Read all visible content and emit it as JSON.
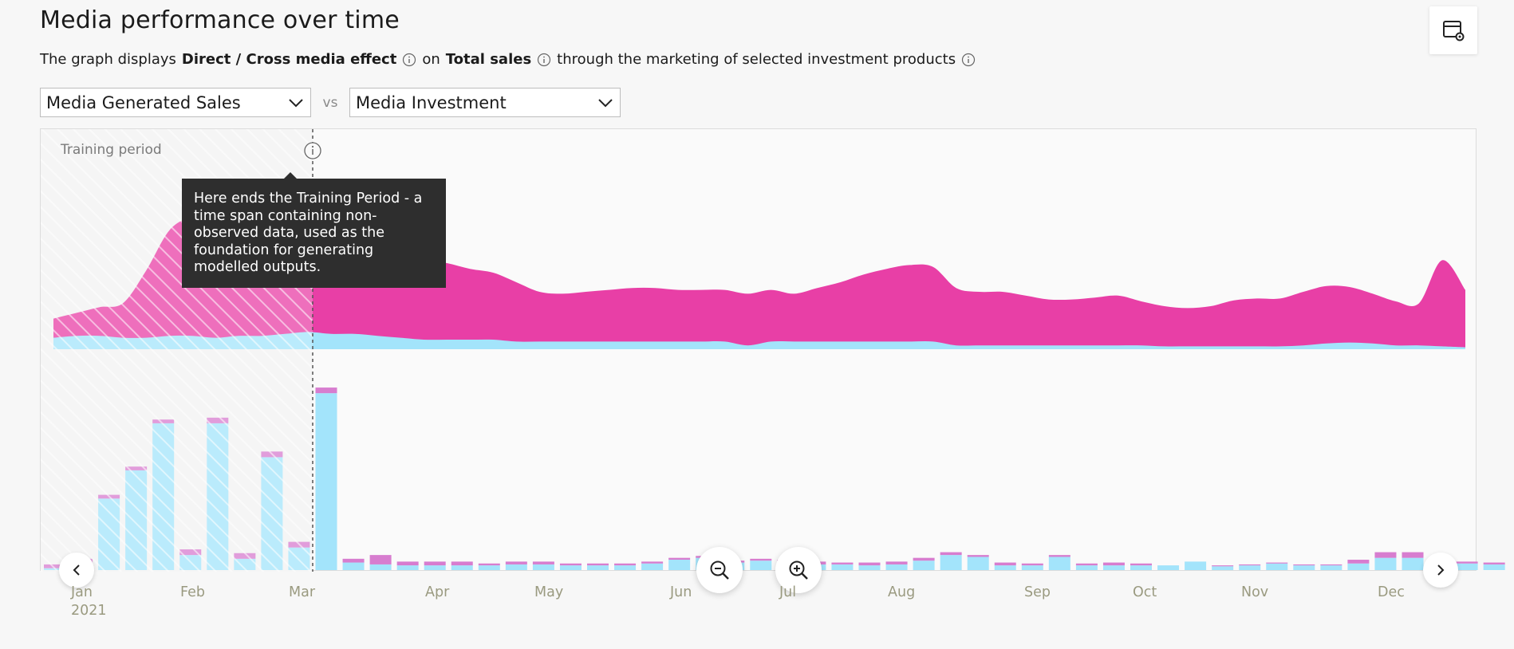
{
  "header": {
    "title": "Media performance over time"
  },
  "description": {
    "prefix": "The graph displays",
    "effect": "Direct / Cross media effect",
    "on": "on",
    "kpi": "Total sales",
    "suffix": "through the marketing of selected investment products"
  },
  "selectors": {
    "left_value": "Media Generated Sales",
    "vs_label": "vs",
    "right_value": "Media Investment"
  },
  "training": {
    "label": "Training period",
    "tooltip": "Here ends the Training Period - a time span containing non-observed data, used as the foundation for generating modelled outputs."
  },
  "colors": {
    "direct": "#e83fa6",
    "cross": "#a3e4fb",
    "bar_top": "#d77dcf",
    "bar_main": "#a3e4fb"
  },
  "icons": {
    "settings": "table-settings-icon",
    "info": "info-icon",
    "dropdown": "chevron-down-icon",
    "zoom_out": "zoom-out-icon",
    "zoom_in": "zoom-in-icon",
    "prev": "chevron-left-icon",
    "next": "chevron-right-icon"
  },
  "chart_data": {
    "type": "area",
    "months": [
      "Jan",
      "Feb",
      "Mar",
      "Apr",
      "May",
      "Jun",
      "Jul",
      "Aug",
      "Sep",
      "Oct",
      "Nov",
      "Dec"
    ],
    "year": "2021",
    "training_end_week": 10,
    "area_chart": {
      "series": [
        {
          "values": [
            10,
            12,
            15,
            18,
            35,
            55,
            63,
            70,
            66,
            62,
            56,
            52,
            50,
            48,
            46,
            44,
            42,
            40,
            37,
            35,
            31,
            26,
            25,
            26,
            27,
            28,
            28,
            27,
            27,
            27,
            27,
            27,
            25,
            28,
            31,
            35,
            38,
            40,
            39,
            30,
            28,
            28,
            26,
            24,
            24,
            25,
            26,
            23,
            21,
            20,
            21,
            24,
            25,
            25,
            28,
            30,
            29,
            26,
            23,
            22,
            45,
            30
          ]
        },
        {
          "values": [
            6,
            7,
            7,
            6,
            6,
            7,
            7,
            6,
            7,
            7,
            8,
            9,
            8,
            8,
            7,
            6,
            5,
            5,
            5,
            5,
            4,
            4,
            4,
            4,
            4,
            4,
            4,
            4,
            4,
            4,
            2,
            4,
            4,
            4,
            4,
            4,
            4,
            4,
            4,
            2,
            2,
            2,
            2,
            2,
            2,
            2,
            2,
            2,
            1.5,
            1.5,
            1.5,
            1.5,
            1.5,
            1.5,
            2,
            3,
            3.5,
            3,
            2,
            2,
            1.5,
            1
          ]
        }
      ]
    },
    "bar_chart": {
      "series": [
        {
          "values": [
            1,
            4,
            38,
            53,
            78,
            8,
            78,
            6,
            60,
            12,
            94,
            4,
            3,
            2.5,
            2.5,
            2.5,
            2.5,
            3,
            3,
            2.5,
            2.5,
            2.5,
            3.5,
            5.5,
            6.5,
            4,
            5,
            4.5,
            3,
            3,
            2.5,
            3,
            5,
            8,
            7,
            2.5,
            2.5,
            7,
            2.5,
            2.5,
            2.5,
            2.5,
            4.5,
            2,
            2.5,
            3.5,
            2.5,
            2.5,
            3.5,
            6.5,
            6.5,
            5,
            3.5,
            3
          ]
        },
        {
          "values": [
            2,
            2,
            2,
            2,
            2,
            3,
            3,
            3,
            3,
            3,
            3,
            2,
            5,
            2,
            2,
            2,
            1,
            1.5,
            1.5,
            1,
            1,
            1,
            1,
            1,
            1,
            1,
            1,
            1,
            1.5,
            1,
            1.5,
            1.5,
            1.5,
            1.5,
            1,
            1.5,
            1,
            1,
            1,
            1.5,
            1,
            0,
            0,
            0.5,
            0.5,
            0.5,
            0.5,
            0.5,
            2,
            3,
            3,
            2,
            1,
            1
          ]
        }
      ]
    }
  }
}
